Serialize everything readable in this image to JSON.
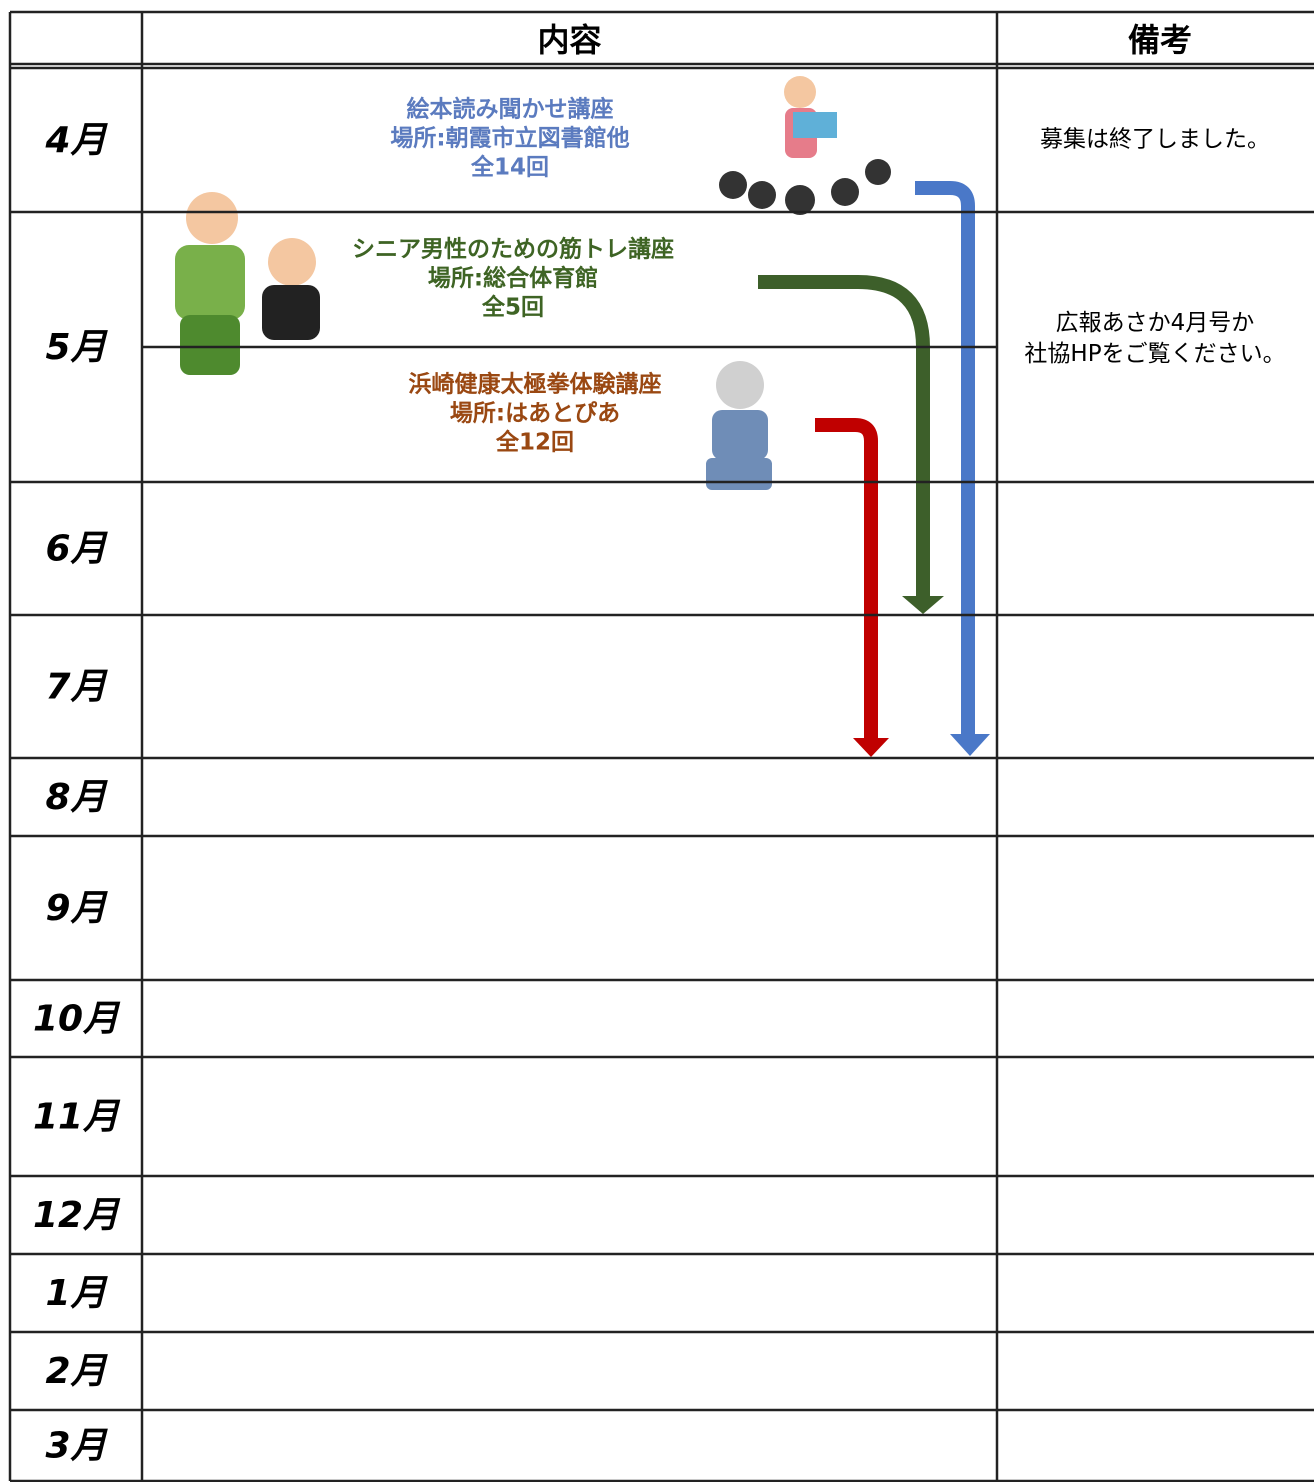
{
  "table": {
    "header": {
      "content": "内容",
      "notes": "備考"
    },
    "rows": [
      {
        "month": "4月",
        "notes": [
          "募集は終了しました。"
        ]
      },
      {
        "month": "5月",
        "notes": [
          "広報あさか4月号か",
          "社協HPをご覧ください。"
        ]
      },
      {
        "month": "6月"
      },
      {
        "month": "7月"
      },
      {
        "month": "8月"
      },
      {
        "month": "9月"
      },
      {
        "month": "10月"
      },
      {
        "month": "11月"
      },
      {
        "month": "12月"
      },
      {
        "month": "1月"
      },
      {
        "month": "2月"
      },
      {
        "month": "3月"
      }
    ],
    "courses": [
      {
        "title": "絵本読み聞かせ講座",
        "place": "場所:朝霞市立図書館他",
        "sessions": "全14回",
        "color": "#5b7bbf"
      },
      {
        "title": "シニア男性のための筋トレ講座",
        "place": "場所:総合体育館",
        "sessions": "全5回",
        "color": "#3e6424"
      },
      {
        "title": "浜崎健康太極拳体験講座",
        "place": "場所:はあとぴあ",
        "sessions": "全12回",
        "color": "#9a4812"
      }
    ]
  }
}
